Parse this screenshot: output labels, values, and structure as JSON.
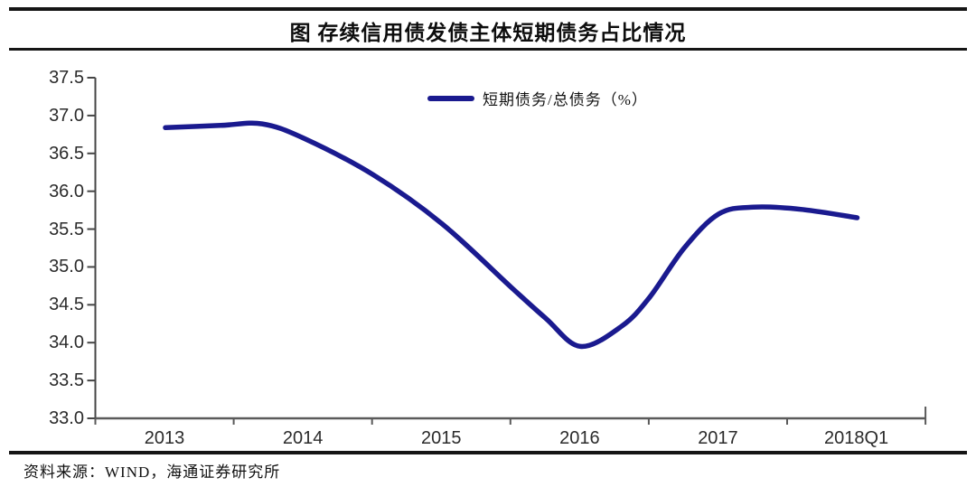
{
  "title": "图  存续信用债发债主体短期债务占比情况",
  "source_note": "资料来源：WIND，海通证券研究所",
  "legend": {
    "label": "短期债务/总债务（%）",
    "swatch_color": "#1a1a8f"
  },
  "colors": {
    "line": "#1a1a8f",
    "axis": "#5a5a5a",
    "text": "#1b1b1b",
    "rule": "#151515"
  },
  "chart_data": {
    "type": "line",
    "title": "图 存续信用债发债主体短期债务占比情况",
    "xlabel": "",
    "ylabel": "",
    "ylim": [
      33.0,
      37.5
    ],
    "y_ticks": [
      37.5,
      37.0,
      36.5,
      36.0,
      35.5,
      35.0,
      34.5,
      34.0,
      33.5,
      33.0
    ],
    "x_categories": [
      "2013",
      "2014",
      "2015",
      "2016",
      "2017",
      "2018Q1"
    ],
    "grid": false,
    "legend_position": "top-center",
    "series": [
      {
        "name": "短期债务/总债务（%）",
        "color": "#1a1a8f",
        "points": [
          {
            "x": 2013.0,
            "y": 36.84
          },
          {
            "x": 2013.4,
            "y": 36.87
          },
          {
            "x": 2013.7,
            "y": 36.89
          },
          {
            "x": 2014.0,
            "y": 36.7
          },
          {
            "x": 2014.5,
            "y": 36.22
          },
          {
            "x": 2015.0,
            "y": 35.57
          },
          {
            "x": 2015.5,
            "y": 34.73
          },
          {
            "x": 2015.75,
            "y": 34.32
          },
          {
            "x": 2016.0,
            "y": 33.95
          },
          {
            "x": 2016.3,
            "y": 34.22
          },
          {
            "x": 2016.5,
            "y": 34.6
          },
          {
            "x": 2016.75,
            "y": 35.25
          },
          {
            "x": 2017.0,
            "y": 35.7
          },
          {
            "x": 2017.25,
            "y": 35.79
          },
          {
            "x": 2017.6,
            "y": 35.76
          },
          {
            "x": 2018.0,
            "y": 35.65
          }
        ]
      }
    ]
  }
}
